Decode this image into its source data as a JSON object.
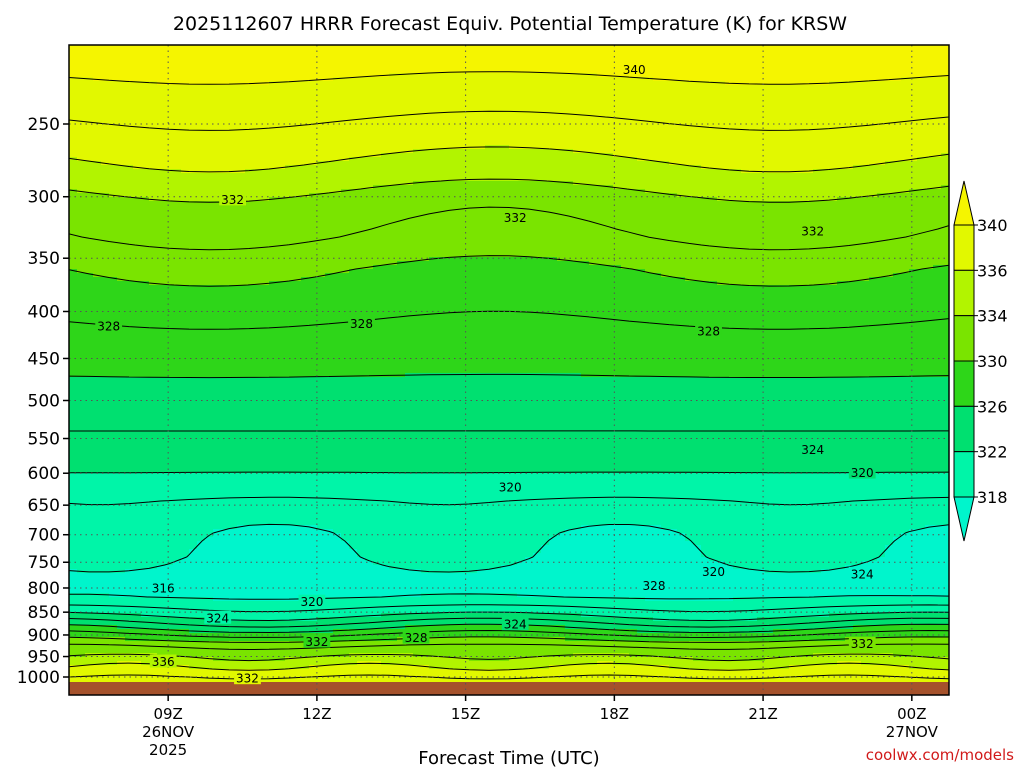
{
  "chart_data": {
    "type": "area",
    "title": "2025112607 HRRR Forecast Equiv. Potential Temperature (K) for KRSW",
    "xlabel": "Forecast Time (UTC)",
    "ylabel": "",
    "y_scale": "log",
    "y_inverted": true,
    "ylim": [
      1015,
      205
    ],
    "y_ticks": [
      {
        "value": 250,
        "label": "250"
      },
      {
        "value": 300,
        "label": "300"
      },
      {
        "value": 350,
        "label": "350"
      },
      {
        "value": 400,
        "label": "400"
      },
      {
        "value": 450,
        "label": "450"
      },
      {
        "value": 500,
        "label": "500"
      },
      {
        "value": 550,
        "label": "550"
      },
      {
        "value": 600,
        "label": "600"
      },
      {
        "value": 650,
        "label": "650"
      },
      {
        "value": 700,
        "label": "700"
      },
      {
        "value": 750,
        "label": "750"
      },
      {
        "value": 800,
        "label": "800"
      },
      {
        "value": 850,
        "label": "850"
      },
      {
        "value": 900,
        "label": "900"
      },
      {
        "value": 950,
        "label": "950"
      },
      {
        "value": 1000,
        "label": "1000"
      }
    ],
    "xlim": [
      7,
      24.75
    ],
    "x_ticks": [
      {
        "value": 9,
        "lines": [
          "09Z",
          "26NOV",
          "2025"
        ]
      },
      {
        "value": 12,
        "lines": [
          "12Z"
        ]
      },
      {
        "value": 15,
        "lines": [
          "15Z"
        ]
      },
      {
        "value": 18,
        "lines": [
          "18Z"
        ]
      },
      {
        "value": 21,
        "lines": [
          "21Z"
        ]
      },
      {
        "value": 24,
        "lines": [
          "00Z",
          "27NOV"
        ]
      }
    ],
    "grid": true,
    "colorbar": {
      "labels": [
        "340",
        "336",
        "334",
        "330",
        "326",
        "322",
        "318"
      ],
      "bins": [
        {
          "min": 318,
          "max": 322,
          "color": "#00f5a8"
        },
        {
          "min": 322,
          "max": 326,
          "color": "#00e070"
        },
        {
          "min": 326,
          "max": 330,
          "color": "#2ed619"
        },
        {
          "min": 330,
          "max": 334,
          "color": "#7ae400"
        },
        {
          "min": 334,
          "max": 336,
          "color": "#b2f400"
        },
        {
          "min": 336,
          "max": 340,
          "color": "#e2f800"
        }
      ],
      "under_color": "#00f5cc",
      "over_color": "#f5f500"
    },
    "profile": {
      "columns": [
        "pressure_hPa",
        "theta_e_K"
      ],
      "values": [
        [
          210,
          341
        ],
        [
          235,
          339
        ],
        [
          260,
          337
        ],
        [
          285,
          335
        ],
        [
          305,
          333
        ],
        [
          330,
          332
        ],
        [
          360,
          330
        ],
        [
          410,
          328
        ],
        [
          470,
          326
        ],
        [
          540,
          324
        ],
        [
          600,
          322
        ],
        [
          640,
          320
        ],
        [
          690,
          318.5
        ],
        [
          740,
          318
        ],
        [
          790,
          317
        ],
        [
          820,
          318
        ],
        [
          850,
          321
        ],
        [
          880,
          325
        ],
        [
          905,
          329
        ],
        [
          925,
          332
        ],
        [
          950,
          334
        ],
        [
          975,
          336
        ],
        [
          1000,
          338
        ],
        [
          1015,
          339
        ]
      ]
    },
    "contour_labels": [
      {
        "text": "340",
        "x": 18.4,
        "p": 218
      },
      {
        "text": "332",
        "x": 10.3,
        "p": 302
      },
      {
        "text": "332",
        "x": 16.0,
        "p": 316
      },
      {
        "text": "332",
        "x": 22.0,
        "p": 327
      },
      {
        "text": "328",
        "x": 7.8,
        "p": 415
      },
      {
        "text": "328",
        "x": 12.9,
        "p": 412
      },
      {
        "text": "328",
        "x": 19.9,
        "p": 420
      },
      {
        "text": "324",
        "x": 22.0,
        "p": 565
      },
      {
        "text": "320",
        "x": 23.0,
        "p": 599
      },
      {
        "text": "320",
        "x": 15.9,
        "p": 621
      },
      {
        "text": "316",
        "x": 8.9,
        "p": 800
      },
      {
        "text": "320",
        "x": 20.0,
        "p": 768
      },
      {
        "text": "324",
        "x": 23.0,
        "p": 772
      },
      {
        "text": "328",
        "x": 18.8,
        "p": 795
      },
      {
        "text": "320",
        "x": 11.9,
        "p": 828
      },
      {
        "text": "324",
        "x": 10.0,
        "p": 862
      },
      {
        "text": "324",
        "x": 16.0,
        "p": 876
      },
      {
        "text": "328",
        "x": 14.0,
        "p": 906
      },
      {
        "text": "332",
        "x": 12.0,
        "p": 915
      },
      {
        "text": "332",
        "x": 23.0,
        "p": 920
      },
      {
        "text": "336",
        "x": 8.9,
        "p": 962
      },
      {
        "text": "332",
        "x": 10.6,
        "p": 1003
      }
    ],
    "ground_color": "#a5522c"
  },
  "credit": "coolwx.com/models"
}
